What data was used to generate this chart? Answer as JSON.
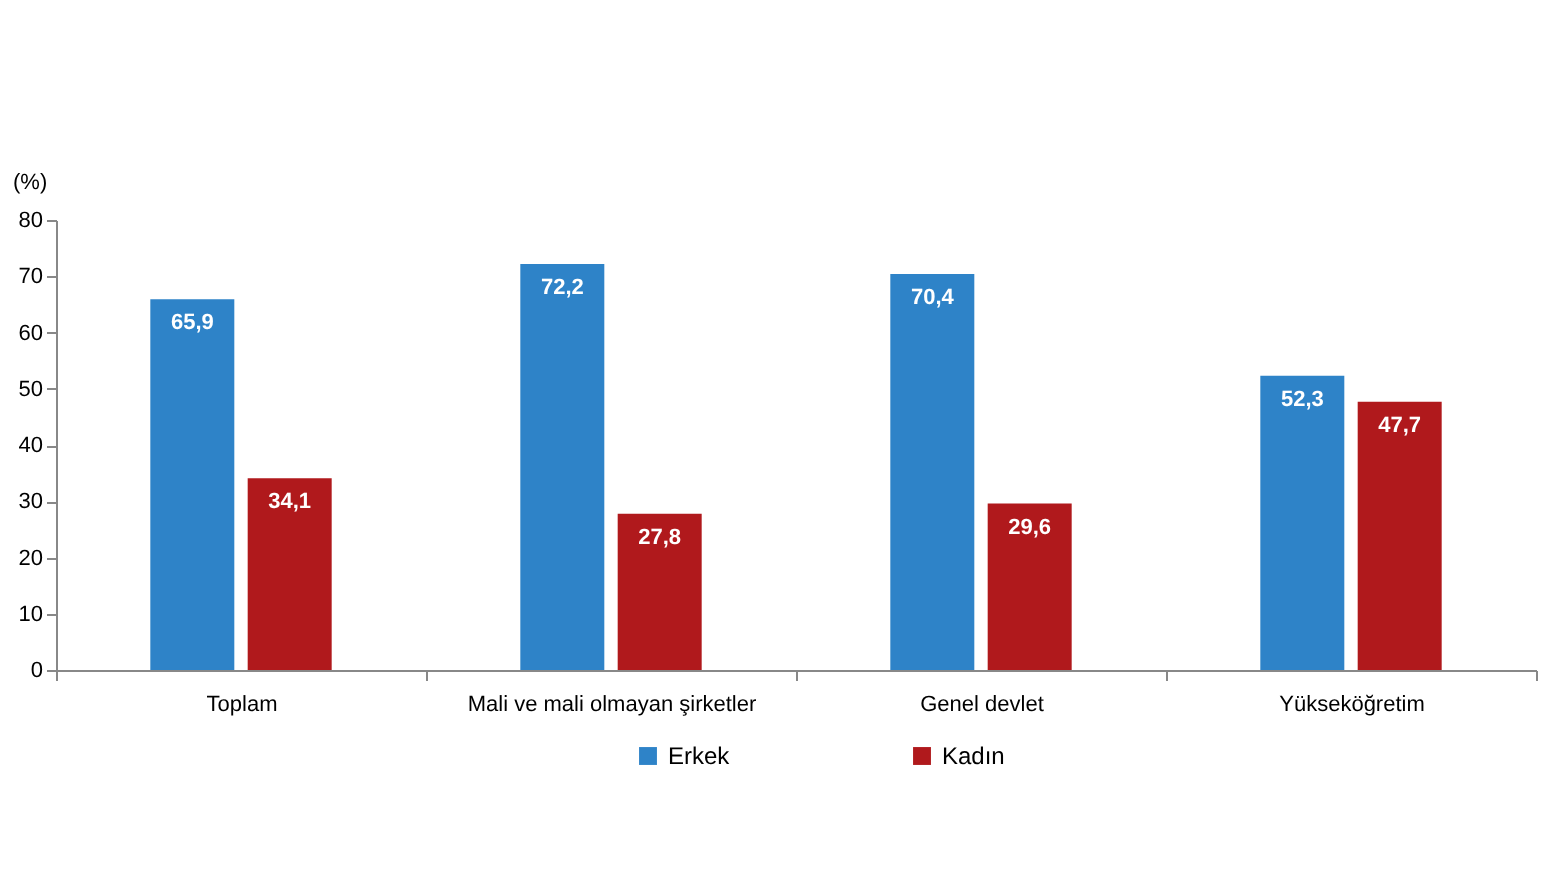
{
  "chart_data": {
    "type": "bar",
    "ylabel": "(%)",
    "categories": [
      "Toplam",
      "Mali ve mali olmayan şirketler",
      "Genel devlet",
      "Yükseköğretim"
    ],
    "series": [
      {
        "name": "Erkek",
        "color": "#2e83c8",
        "values": [
          65.9,
          72.2,
          70.4,
          52.3
        ],
        "value_labels": [
          "65,9",
          "72,2",
          "70,4",
          "52,3"
        ]
      },
      {
        "name": "Kadın",
        "color": "#b0191c",
        "values": [
          34.1,
          27.8,
          29.6,
          47.7
        ],
        "value_labels": [
          "34,1",
          "27,8",
          "29,6",
          "47,7"
        ]
      }
    ],
    "ylim": [
      0,
      80
    ],
    "yticks": [
      0,
      10,
      20,
      30,
      40,
      50,
      60,
      70,
      80
    ],
    "grid": false,
    "legend": "bottom"
  }
}
